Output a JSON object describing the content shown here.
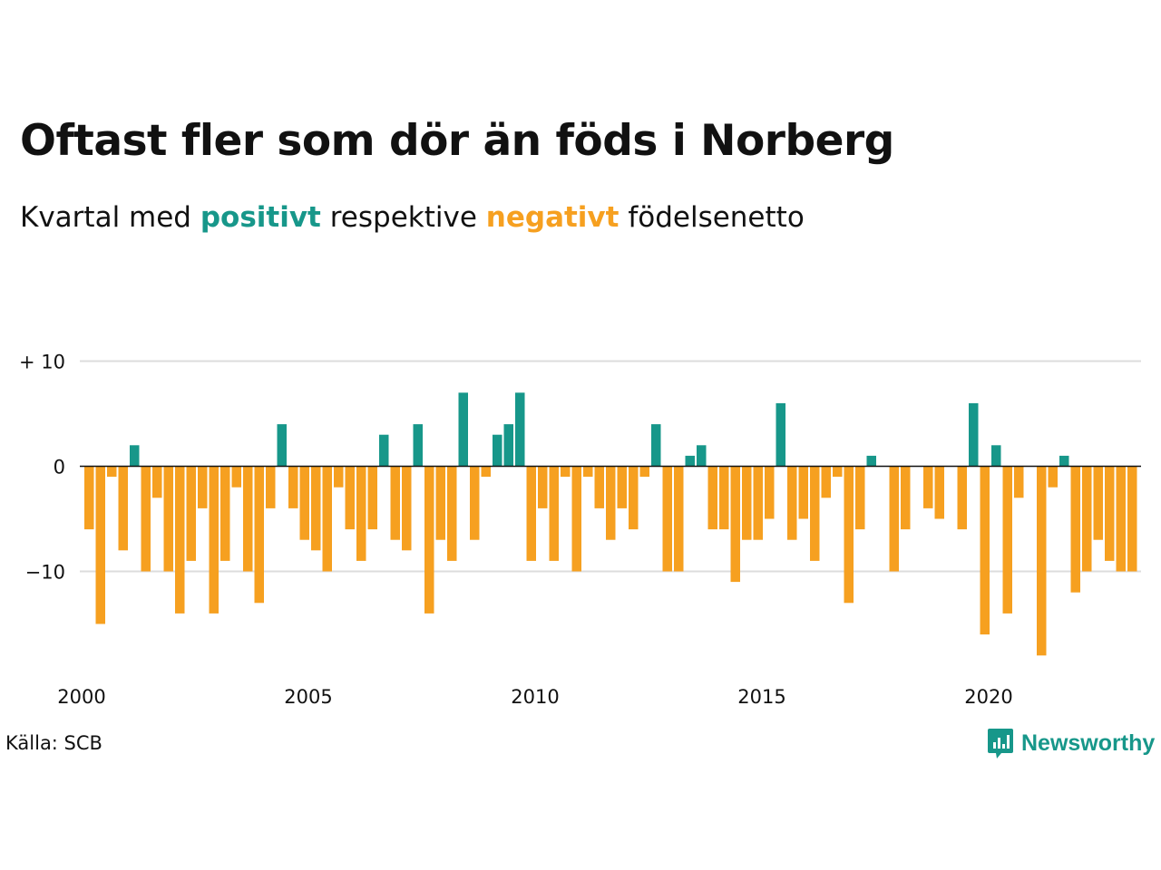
{
  "header": {
    "title": "Oftast fler som dör än föds i Norberg",
    "subtitle_prefix": "Kvartal med ",
    "subtitle_positive": "positivt",
    "subtitle_middle": " respektive ",
    "subtitle_negative": "negativt",
    "subtitle_suffix": " födelsenetto"
  },
  "footer": {
    "source": "Källa: SCB",
    "brand": "Newsworthy",
    "brand_icon": "newsworthy-logo-icon"
  },
  "colors": {
    "positive": "#17978a",
    "negative": "#f6a020",
    "grid": "#dddddd",
    "zero_line": "#111111"
  },
  "chart_data": {
    "type": "bar",
    "x_start": "2000 Q1",
    "x_ticks": [
      2000,
      2005,
      2010,
      2015,
      2020
    ],
    "y_tick_labels": [
      "+ 10",
      "0",
      "−10"
    ],
    "y_ticks": [
      10,
      0,
      -10
    ],
    "ylim": [
      -19,
      11
    ],
    "grid": true,
    "values": [
      -6,
      -15,
      -1,
      -8,
      2,
      -10,
      -3,
      -10,
      -14,
      -9,
      -4,
      -14,
      -9,
      -2,
      -10,
      -13,
      -4,
      4,
      -4,
      -7,
      -8,
      -10,
      -2,
      -6,
      -9,
      -6,
      3,
      -7,
      -8,
      4,
      -14,
      -7,
      -9,
      7,
      -7,
      -1,
      3,
      4,
      7,
      -9,
      -4,
      -9,
      -1,
      -10,
      -1,
      -4,
      -7,
      -4,
      -6,
      -1,
      4,
      -10,
      -10,
      1,
      2,
      -6,
      -6,
      -11,
      -7,
      -7,
      -5,
      6,
      -7,
      -5,
      -9,
      -3,
      -1,
      -13,
      -6,
      1,
      0,
      -10,
      -6,
      0,
      -4,
      -5,
      0,
      -6,
      6,
      -16,
      2,
      -14,
      -3,
      0,
      -18,
      -2,
      1,
      -12,
      -10,
      -7,
      -9,
      -10,
      -10
    ]
  }
}
